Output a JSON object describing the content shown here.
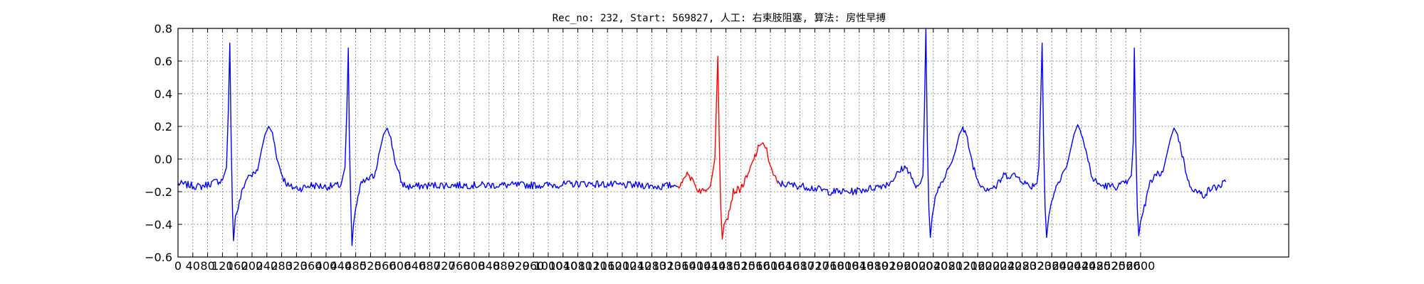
{
  "chart_data": {
    "type": "line",
    "title": "Rec_no: 232, Start: 569827, 人工: 右束肢阻塞, 算法: 房性早搏",
    "xlabel": "",
    "ylabel": "",
    "xlim": [
      0,
      3000
    ],
    "ylim": [
      -0.6,
      0.8
    ],
    "yticks": [
      -0.6,
      -0.4,
      -0.2,
      0.0,
      0.2,
      0.4,
      0.6,
      0.8
    ],
    "ytick_labels": [
      "−0.6",
      "−0.4",
      "−0.2",
      "0.0",
      "0.2",
      "0.4",
      "0.6",
      "0.8"
    ],
    "xticks": [
      0,
      40,
      80,
      120,
      160,
      200,
      240,
      280,
      320,
      360,
      400,
      440,
      480,
      520,
      560,
      600,
      640,
      680,
      720,
      760,
      800,
      840,
      880,
      920,
      960,
      1000,
      1040,
      1080,
      1120,
      1160,
      1200,
      1240,
      1280,
      1320,
      1360,
      1400,
      1440,
      1480,
      1520,
      1560,
      1600,
      1640,
      1680,
      1720,
      1760,
      1800,
      1840,
      1880,
      1920,
      1960,
      2000,
      2040,
      2080,
      2120,
      2160,
      2200,
      2240,
      2280,
      2320,
      2360,
      2400,
      2440,
      2480,
      2520,
      2560,
      2600
    ],
    "grid": true,
    "beats_x": [
      140,
      460,
      1460,
      2100,
      2410
    ],
    "highlight_x": [
      1350,
      1620
    ],
    "series": [
      {
        "color": "#0000ff",
        "points": [
          [
            0,
            -0.15
          ],
          [
            60,
            -0.17
          ],
          [
            100,
            -0.14
          ],
          [
            120,
            -0.13
          ],
          [
            131,
            -0.05
          ],
          [
            136,
            0.3
          ],
          [
            140,
            0.71
          ],
          [
            143,
            0.2
          ],
          [
            147,
            -0.3
          ],
          [
            150,
            -0.5
          ],
          [
            155,
            -0.35
          ],
          [
            160,
            -0.32
          ],
          [
            175,
            -0.18
          ],
          [
            190,
            -0.1
          ],
          [
            200,
            -0.1
          ],
          [
            215,
            -0.07
          ],
          [
            225,
            0.05
          ],
          [
            235,
            0.15
          ],
          [
            245,
            0.2
          ],
          [
            255,
            0.16
          ],
          [
            270,
            -0.02
          ],
          [
            285,
            -0.12
          ],
          [
            300,
            -0.17
          ],
          [
            330,
            -0.18
          ],
          [
            360,
            -0.16
          ],
          [
            400,
            -0.17
          ],
          [
            440,
            -0.16
          ],
          [
            451,
            -0.05
          ],
          [
            456,
            0.3
          ],
          [
            460,
            0.68
          ],
          [
            463,
            0.1
          ],
          [
            467,
            -0.3
          ],
          [
            470,
            -0.53
          ],
          [
            474,
            -0.4
          ],
          [
            480,
            -0.3
          ],
          [
            495,
            -0.15
          ],
          [
            510,
            -0.13
          ],
          [
            530,
            -0.1
          ],
          [
            545,
            0.05
          ],
          [
            555,
            0.15
          ],
          [
            565,
            0.19
          ],
          [
            575,
            0.12
          ],
          [
            590,
            -0.05
          ],
          [
            605,
            -0.15
          ],
          [
            620,
            -0.17
          ],
          [
            700,
            -0.16
          ],
          [
            800,
            -0.16
          ],
          [
            900,
            -0.16
          ],
          [
            1000,
            -0.16
          ],
          [
            1100,
            -0.15
          ],
          [
            1200,
            -0.16
          ],
          [
            1260,
            -0.16
          ],
          [
            1300,
            -0.17
          ],
          [
            1340,
            -0.16
          ],
          [
            1350,
            -0.17
          ]
        ]
      },
      {
        "color": "#ff0000",
        "points": [
          [
            1350,
            -0.17
          ],
          [
            1365,
            -0.12
          ],
          [
            1375,
            -0.1
          ],
          [
            1390,
            -0.12
          ],
          [
            1400,
            -0.18
          ],
          [
            1420,
            -0.2
          ],
          [
            1440,
            -0.14
          ],
          [
            1450,
            0.0
          ],
          [
            1455,
            0.4
          ],
          [
            1458,
            0.63
          ],
          [
            1462,
            0.1
          ],
          [
            1466,
            -0.3
          ],
          [
            1470,
            -0.49
          ],
          [
            1475,
            -0.4
          ],
          [
            1485,
            -0.35
          ],
          [
            1500,
            -0.2
          ],
          [
            1520,
            -0.18
          ],
          [
            1540,
            -0.1
          ],
          [
            1555,
            0.0
          ],
          [
            1570,
            0.08
          ],
          [
            1580,
            0.1
          ],
          [
            1590,
            0.05
          ],
          [
            1605,
            -0.08
          ],
          [
            1620,
            -0.15
          ]
        ]
      },
      {
        "color": "#0000ff",
        "points": [
          [
            1620,
            -0.15
          ],
          [
            1700,
            -0.17
          ],
          [
            1760,
            -0.2
          ],
          [
            1820,
            -0.2
          ],
          [
            1870,
            -0.18
          ],
          [
            1920,
            -0.15
          ],
          [
            1940,
            -0.1
          ],
          [
            1960,
            -0.05
          ],
          [
            1975,
            -0.07
          ],
          [
            1990,
            -0.17
          ],
          [
            2005,
            -0.15
          ],
          [
            2012,
            -0.1
          ],
          [
            2016,
            0.3
          ],
          [
            2020,
            0.8
          ],
          [
            2024,
            0.1
          ],
          [
            2028,
            -0.3
          ],
          [
            2032,
            -0.48
          ],
          [
            2037,
            -0.35
          ],
          [
            2045,
            -0.25
          ],
          [
            2060,
            -0.15
          ],
          [
            2075,
            -0.08
          ],
          [
            2090,
            -0.02
          ],
          [
            2100,
            0.05
          ],
          [
            2110,
            0.15
          ],
          [
            2120,
            0.19
          ],
          [
            2132,
            0.12
          ],
          [
            2145,
            -0.02
          ],
          [
            2160,
            -0.13
          ],
          [
            2180,
            -0.18
          ],
          [
            2210,
            -0.17
          ],
          [
            2230,
            -0.1
          ],
          [
            2260,
            -0.1
          ],
          [
            2275,
            -0.12
          ],
          [
            2300,
            -0.17
          ],
          [
            2320,
            -0.15
          ],
          [
            2325,
            -0.05
          ],
          [
            2330,
            0.35
          ],
          [
            2334,
            0.71
          ],
          [
            2338,
            0.1
          ],
          [
            2342,
            -0.3
          ],
          [
            2346,
            -0.48
          ],
          [
            2352,
            -0.35
          ],
          [
            2360,
            -0.25
          ],
          [
            2375,
            -0.15
          ],
          [
            2390,
            -0.08
          ],
          [
            2400,
            -0.05
          ],
          [
            2410,
            0.05
          ],
          [
            2420,
            0.15
          ],
          [
            2430,
            0.21
          ],
          [
            2440,
            0.16
          ],
          [
            2455,
            0.02
          ],
          [
            2470,
            -0.12
          ],
          [
            2490,
            -0.16
          ],
          [
            2530,
            -0.17
          ],
          [
            2560,
            -0.15
          ],
          [
            2575,
            -0.1
          ],
          [
            2580,
            0.1
          ],
          [
            2583,
            0.68
          ],
          [
            2587,
            0.1
          ],
          [
            2591,
            -0.3
          ],
          [
            2595,
            -0.47
          ],
          [
            2600,
            -0.38
          ],
          [
            2610,
            -0.3
          ],
          [
            2625,
            -0.15
          ],
          [
            2640,
            -0.1
          ],
          [
            2660,
            -0.08
          ],
          [
            2670,
            0.02
          ],
          [
            2680,
            0.12
          ],
          [
            2690,
            0.19
          ],
          [
            2700,
            0.15
          ],
          [
            2715,
            0.0
          ],
          [
            2730,
            -0.15
          ],
          [
            2750,
            -0.2
          ],
          [
            2770,
            -0.22
          ],
          [
            2790,
            -0.18
          ],
          [
            2810,
            -0.17
          ],
          [
            2830,
            -0.14
          ]
        ]
      }
    ]
  }
}
